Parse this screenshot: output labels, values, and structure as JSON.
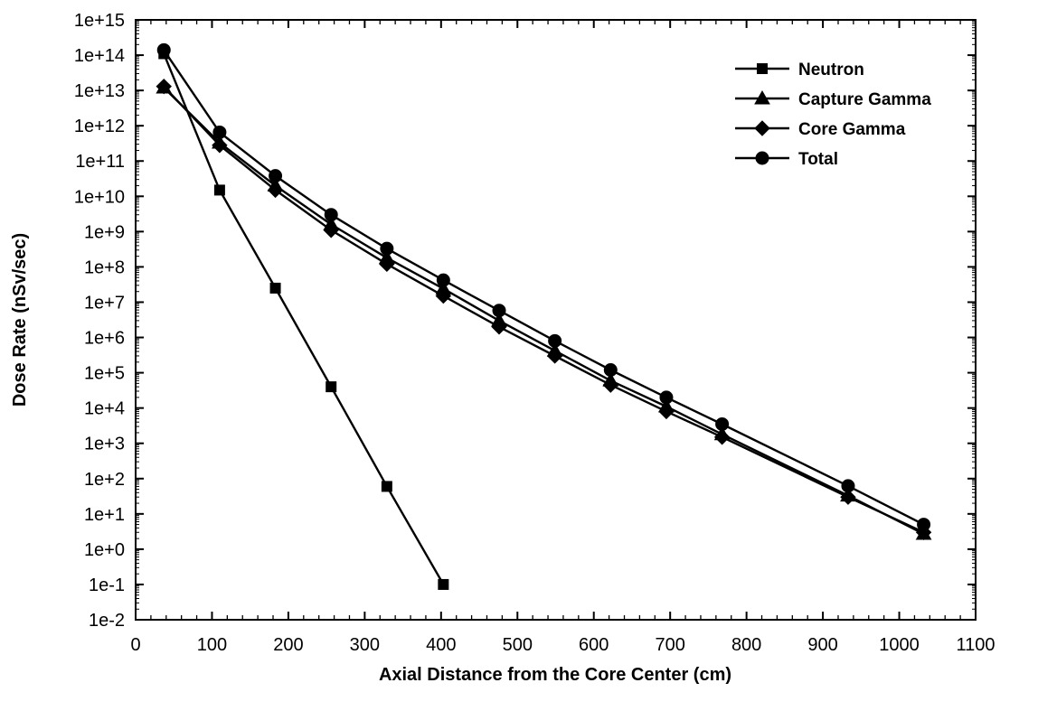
{
  "chart_data": {
    "type": "line",
    "xlabel": "Axial Distance from the Core Center (cm)",
    "ylabel": "Dose Rate (nSv/sec)",
    "xlim": [
      0,
      1100
    ],
    "x_ticks": [
      "0",
      "100",
      "200",
      "300",
      "400",
      "500",
      "600",
      "700",
      "800",
      "900",
      "1000",
      "1100"
    ],
    "y_scale": "log",
    "ylim": [
      0.01,
      1000000000000000.0
    ],
    "y_ticks": [
      "1e-2",
      "1e-1",
      "1e+0",
      "1e+1",
      "1e+2",
      "1e+3",
      "1e+4",
      "1e+5",
      "1e+6",
      "1e+7",
      "1e+8",
      "1e+9",
      "1e+10",
      "1e+11",
      "1e+12",
      "1e+13",
      "1e+14",
      "1e+15"
    ],
    "grid": false,
    "legend_position": "top-right",
    "series": [
      {
        "name": "Neutron",
        "marker": "square",
        "x": [
          37,
          110,
          183,
          256,
          329,
          403
        ],
        "y": [
          110000000000000.0,
          15000000000.0,
          25000000.0,
          40000.0,
          60,
          0.1
        ]
      },
      {
        "name": "Capture Gamma",
        "marker": "triangle",
        "x": [
          37,
          110,
          183,
          256,
          329,
          403,
          476,
          549,
          622,
          695,
          768,
          933,
          1032
        ],
        "y": [
          12000000000000.0,
          330000000000.0,
          20000000000.0,
          1600000000.0,
          180000000.0,
          24000000.0,
          3000000.0,
          420000.0,
          60000.0,
          11000.0,
          1800.0,
          33,
          2.7
        ]
      },
      {
        "name": "Core Gamma",
        "marker": "diamond",
        "x": [
          37,
          110,
          183,
          256,
          329,
          403,
          476,
          549,
          622,
          695,
          768,
          933,
          1032
        ],
        "y": [
          13000000000000.0,
          280000000000.0,
          15000000000.0,
          1100000000.0,
          120000000.0,
          15000000.0,
          2000000.0,
          300000.0,
          45000.0,
          8000.0,
          1500.0,
          30,
          3.0
        ]
      },
      {
        "name": "Total",
        "marker": "circle",
        "x": [
          37,
          110,
          183,
          256,
          329,
          403,
          476,
          549,
          622,
          695,
          768,
          933,
          1032
        ],
        "y": [
          140000000000000.0,
          650000000000.0,
          38000000000.0,
          3000000000.0,
          330000000.0,
          42000000.0,
          5800000.0,
          800000.0,
          120000.0,
          20000.0,
          3500.0,
          62,
          5.0
        ]
      }
    ]
  }
}
